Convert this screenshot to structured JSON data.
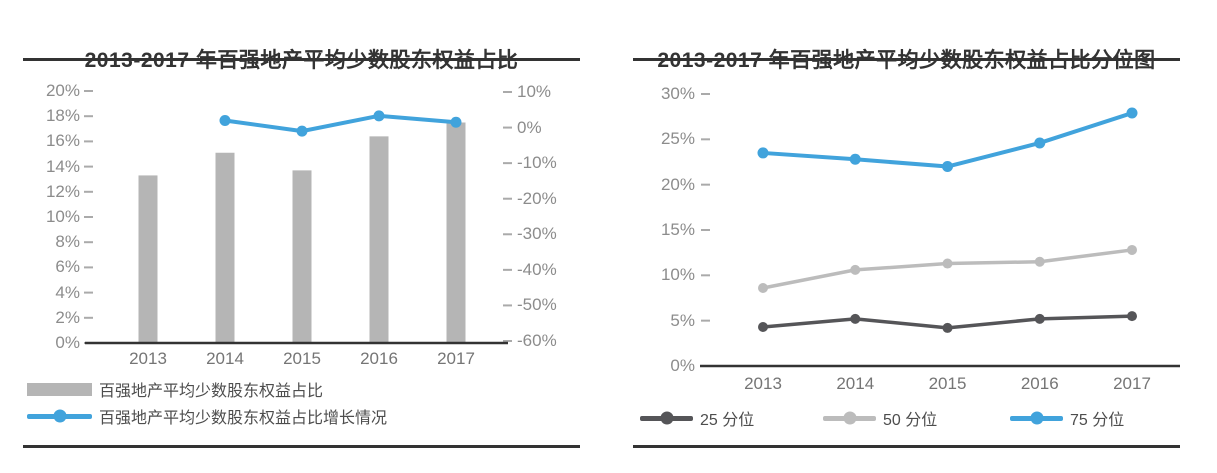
{
  "colors": {
    "accent_blue": "#41a3dc",
    "bar_gray": "#b5b5b5",
    "percentile50_gray": "#bcbcbc",
    "percentile25_dark": "#555558",
    "axis_dark": "#333333",
    "tick_gray": "#8c8c8c",
    "xlabel_gray": "#757575",
    "legend_text": "#4d4d4d",
    "background": "#ffffff"
  },
  "chart_data": [
    {
      "type": "bar",
      "title": "2013-2017 年百强地产平均少数股东权益占比",
      "categories": [
        "2013",
        "2014",
        "2015",
        "2016",
        "2017"
      ],
      "series": [
        {
          "name": "百强地产平均少数股东权益占比",
          "type": "bar",
          "axis": "left",
          "color": "#b5b5b5",
          "values": [
            13.3,
            15.1,
            13.7,
            16.4,
            17.5
          ]
        },
        {
          "name": "百强地产平均少数股东权益占比增长情况",
          "type": "line",
          "axis": "right",
          "color": "#41a3dc",
          "categories": [
            "2014",
            "2015",
            "2016",
            "2017"
          ],
          "values": [
            2.0,
            -1.0,
            3.3,
            1.5
          ]
        }
      ],
      "left_axis": {
        "min": 0,
        "max": 20,
        "step": 2,
        "ticks": [
          "20%",
          "18%",
          "16%",
          "14%",
          "12%",
          "10%",
          "8%",
          "6%",
          "4%",
          "2%",
          "0%"
        ]
      },
      "right_axis": {
        "min": -60,
        "max": 10,
        "step": 10,
        "ticks": [
          "10%",
          "0%",
          "-10%",
          "-20%",
          "-30%",
          "-40%",
          "-50%",
          "-60%"
        ]
      },
      "grid": false,
      "legend_position": "bottom-left"
    },
    {
      "type": "line",
      "title": "2013-2017 年百强地产平均少数股东权益占比分位图",
      "categories": [
        "2013",
        "2014",
        "2015",
        "2016",
        "2017"
      ],
      "series": [
        {
          "name": "25 分位",
          "type": "line",
          "color": "#555558",
          "values": [
            4.3,
            5.2,
            4.2,
            5.2,
            5.5
          ]
        },
        {
          "name": "50 分位",
          "type": "line",
          "color": "#bcbcbc",
          "values": [
            8.6,
            10.6,
            11.3,
            11.5,
            12.8
          ]
        },
        {
          "name": "75 分位",
          "type": "line",
          "color": "#41a3dc",
          "values": [
            23.5,
            22.8,
            22.0,
            24.6,
            27.9
          ]
        }
      ],
      "y_axis": {
        "min": 0,
        "max": 30,
        "step": 5,
        "ticks": [
          "30%",
          "25%",
          "20%",
          "15%",
          "10%",
          "5%",
          "0%"
        ]
      },
      "grid": false,
      "legend_position": "bottom"
    }
  ]
}
